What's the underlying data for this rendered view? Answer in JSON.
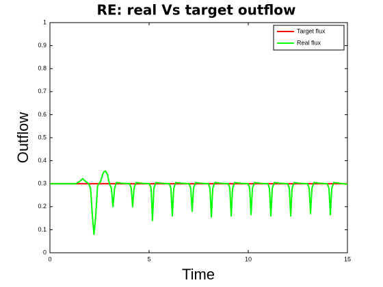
{
  "chart_data": {
    "type": "line",
    "title": "RE: real Vs target outflow",
    "x_label": "Time",
    "y_label": "Outflow",
    "xlim": [
      0,
      15
    ],
    "xticks": [
      0,
      5,
      10,
      15
    ],
    "ylim": [
      0,
      1
    ],
    "yticks": [
      0,
      0.1,
      0.2,
      0.3,
      0.4,
      0.5,
      0.6,
      0.7,
      0.8,
      0.9,
      1
    ],
    "grid": false,
    "legend": "upper right",
    "series": [
      {
        "name": "Target flux",
        "color": "#ff0000",
        "x": [
          0,
          15
        ],
        "values": [
          0.3,
          0.3
        ]
      },
      {
        "name": "Real flux",
        "color": "#00ff00",
        "x": [
          0,
          1.3,
          1.5,
          1.65,
          1.8,
          1.95,
          2.05,
          2.15,
          2.22,
          2.3,
          2.4,
          2.55,
          2.7,
          2.8,
          2.9,
          3.0,
          3.1,
          3.18,
          3.26,
          3.35,
          3.6,
          4.02,
          4.1,
          4.17,
          4.24,
          4.34,
          4.62,
          5.02,
          5.1,
          5.17,
          5.24,
          5.34,
          5.62,
          6.02,
          6.1,
          6.17,
          6.24,
          6.34,
          6.62,
          7.02,
          7.1,
          7.17,
          7.24,
          7.34,
          7.62,
          7.99,
          8.07,
          8.14,
          8.21,
          8.31,
          8.59,
          8.99,
          9.07,
          9.14,
          9.21,
          9.31,
          9.59,
          9.99,
          10.07,
          10.14,
          10.21,
          10.31,
          10.59,
          10.99,
          11.07,
          11.14,
          11.21,
          11.31,
          11.59,
          11.99,
          12.07,
          12.14,
          12.21,
          12.31,
          12.59,
          12.99,
          13.07,
          13.14,
          13.21,
          13.31,
          13.59,
          13.99,
          14.07,
          14.14,
          14.21,
          14.31,
          14.59,
          15
        ],
        "values": [
          0.3,
          0.3,
          0.31,
          0.322,
          0.31,
          0.3,
          0.28,
          0.15,
          0.08,
          0.15,
          0.29,
          0.31,
          0.35,
          0.355,
          0.34,
          0.3,
          0.28,
          0.2,
          0.28,
          0.305,
          0.302,
          0.3,
          0.28,
          0.2,
          0.28,
          0.305,
          0.302,
          0.3,
          0.28,
          0.14,
          0.28,
          0.305,
          0.302,
          0.3,
          0.28,
          0.16,
          0.28,
          0.305,
          0.302,
          0.3,
          0.28,
          0.18,
          0.28,
          0.305,
          0.302,
          0.3,
          0.28,
          0.155,
          0.28,
          0.305,
          0.302,
          0.3,
          0.28,
          0.16,
          0.28,
          0.305,
          0.302,
          0.3,
          0.28,
          0.165,
          0.28,
          0.305,
          0.302,
          0.3,
          0.28,
          0.16,
          0.28,
          0.305,
          0.302,
          0.3,
          0.28,
          0.16,
          0.28,
          0.305,
          0.302,
          0.3,
          0.28,
          0.17,
          0.28,
          0.305,
          0.302,
          0.3,
          0.28,
          0.165,
          0.28,
          0.305,
          0.302,
          0.298
        ]
      }
    ]
  }
}
